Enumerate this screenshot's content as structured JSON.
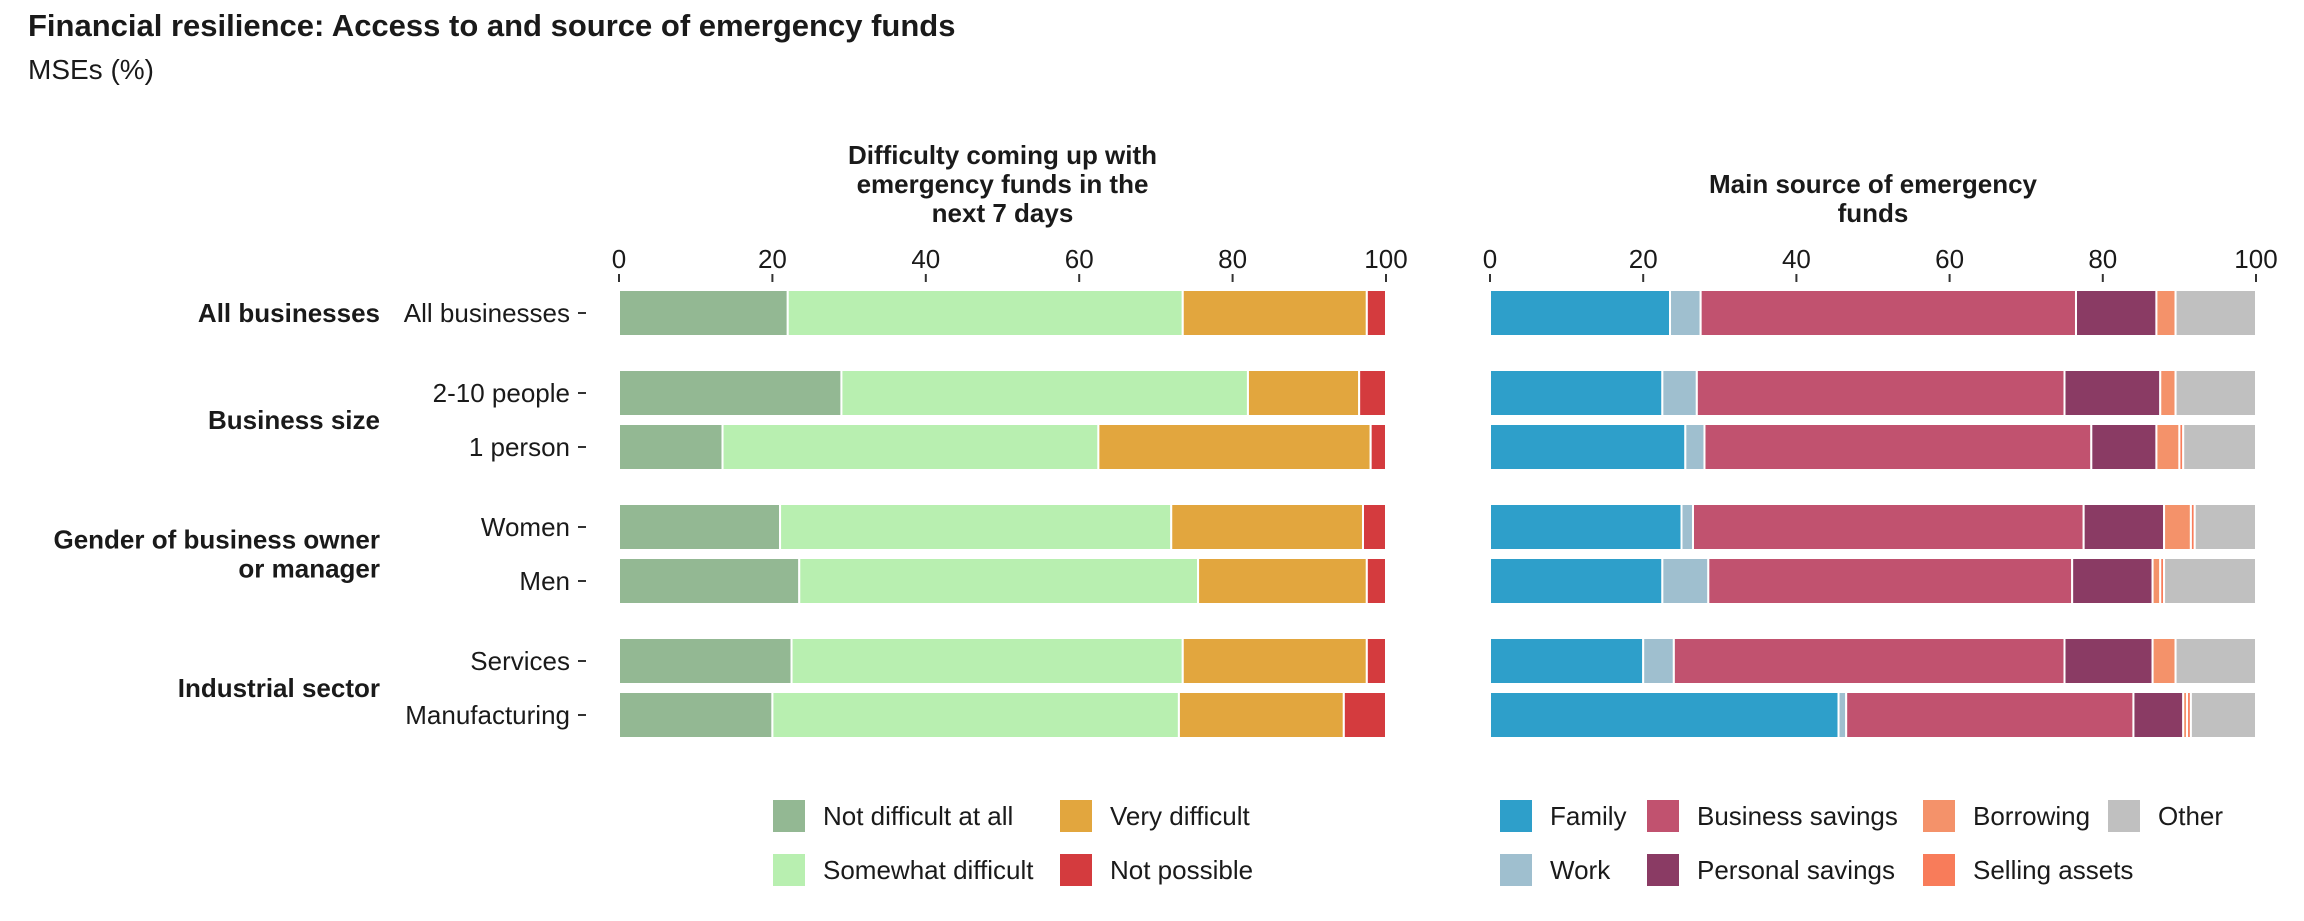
{
  "title": "Financial resilience: Access to and source of emergency funds",
  "subtitle": "MSEs (%)",
  "chart_data": [
    {
      "type": "bar",
      "orientation": "horizontal",
      "stacked": true,
      "title": "Difficulty coming up with emergency funds in the next 7 days",
      "title_lines": [
        "Difficulty coming up with",
        "emergency funds in the",
        "next 7 days"
      ],
      "xlim": [
        0,
        100
      ],
      "xticks": [
        0,
        20,
        40,
        60,
        80,
        100
      ],
      "categories": [
        "All businesses",
        "2-10 people",
        "1 person",
        "Women",
        "Men",
        "Services",
        "Manufacturing"
      ],
      "groups": [
        {
          "label": "All businesses",
          "label_lines": [
            "All businesses"
          ],
          "members": [
            "All businesses"
          ]
        },
        {
          "label": "Business size",
          "label_lines": [
            "Business size"
          ],
          "members": [
            "2-10 people",
            "1 person"
          ]
        },
        {
          "label": "Gender of business owner or manager",
          "label_lines": [
            "Gender of business owner",
            "or manager"
          ],
          "members": [
            "Women",
            "Men"
          ]
        },
        {
          "label": "Industrial sector",
          "label_lines": [
            "Industrial sector"
          ],
          "members": [
            "Services",
            "Manufacturing"
          ]
        }
      ],
      "series": [
        {
          "name": "Not difficult at all",
          "color": "#93b893",
          "values": [
            22,
            29,
            13.5,
            21,
            23.5,
            22.5,
            20
          ]
        },
        {
          "name": "Somewhat difficult",
          "color": "#b8efb0",
          "values": [
            51.5,
            53,
            49,
            51,
            52,
            51,
            53
          ]
        },
        {
          "name": "Very difficult",
          "color": "#e2a63e",
          "values": [
            24,
            14.5,
            35.5,
            25,
            22,
            24,
            21.5
          ]
        },
        {
          "name": "Not possible",
          "color": "#d43b3e",
          "values": [
            2.5,
            3.5,
            2,
            3,
            2.5,
            2.5,
            5.5
          ]
        }
      ],
      "legend": {
        "position": "bottom",
        "columns": 2
      }
    },
    {
      "type": "bar",
      "orientation": "horizontal",
      "stacked": true,
      "title": "Main source of emergency funds",
      "title_lines": [
        "Main source of emergency",
        "funds"
      ],
      "xlim": [
        0,
        100
      ],
      "xticks": [
        0,
        20,
        40,
        60,
        80,
        100
      ],
      "categories": [
        "All businesses",
        "2-10 people",
        "1 person",
        "Women",
        "Men",
        "Services",
        "Manufacturing"
      ],
      "series": [
        {
          "name": "Family",
          "color": "#2e9fca",
          "values": [
            23.5,
            22.5,
            25.5,
            25,
            22.5,
            20,
            45.5
          ]
        },
        {
          "name": "Work",
          "color": "#9fbfcf",
          "values": [
            4,
            4.5,
            2.5,
            1.5,
            6,
            4,
            1
          ]
        },
        {
          "name": "Business savings",
          "color": "#c1526f",
          "values": [
            49,
            48,
            50.5,
            51,
            47.5,
            51,
            37.5
          ]
        },
        {
          "name": "Personal savings",
          "color": "#8a3b64",
          "values": [
            10.5,
            12.5,
            8.5,
            10.5,
            10.5,
            11.5,
            6.5
          ]
        },
        {
          "name": "Borrowing",
          "color": "#f4926a",
          "values": [
            2.5,
            2,
            3,
            3.5,
            1,
            3,
            0.5
          ]
        },
        {
          "name": "Selling assets",
          "color": "#f87c5a",
          "values": [
            0,
            0,
            0.5,
            0.5,
            0.5,
            0,
            0.5
          ]
        },
        {
          "name": "Other",
          "color": "#c0c0c0",
          "values": [
            10.5,
            10.5,
            9.5,
            8,
            12,
            10.5,
            8.5
          ]
        }
      ],
      "legend": {
        "position": "bottom",
        "columns": 4
      }
    }
  ]
}
